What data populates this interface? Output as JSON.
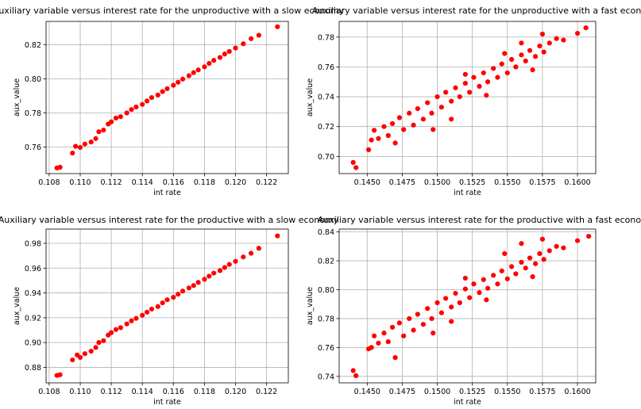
{
  "figure": {
    "marker_color": "#ff0000",
    "grid_color": "#b0b0b0",
    "axes_color": "#000000"
  },
  "chart_data": [
    {
      "type": "scatter",
      "title": "Auxiliary variable versus interest rate for the unproductive with a slow economy",
      "xlabel": "int rate",
      "ylabel": "aux_value",
      "xlim": [
        0.1078,
        0.1234
      ],
      "ylim": [
        0.7445,
        0.8336
      ],
      "xticks": [
        "0.108",
        "0.110",
        "0.112",
        "0.114",
        "0.116",
        "0.118",
        "0.120",
        "0.122"
      ],
      "yticks": [
        "0.76",
        "0.78",
        "0.80",
        "0.82"
      ],
      "grid": true,
      "series": [
        {
          "color": "#ff0000",
          "points": [
            [
              0.1085,
              0.7478
            ],
            [
              0.1087,
              0.7482
            ],
            [
              0.1095,
              0.7565
            ],
            [
              0.1097,
              0.7605
            ],
            [
              0.11,
              0.7598
            ],
            [
              0.1103,
              0.7618
            ],
            [
              0.1107,
              0.763
            ],
            [
              0.111,
              0.765
            ],
            [
              0.1112,
              0.769
            ],
            [
              0.1115,
              0.77
            ],
            [
              0.1118,
              0.7735
            ],
            [
              0.112,
              0.7748
            ],
            [
              0.1123,
              0.777
            ],
            [
              0.1126,
              0.7778
            ],
            [
              0.113,
              0.78
            ],
            [
              0.1133,
              0.782
            ],
            [
              0.1136,
              0.7835
            ],
            [
              0.114,
              0.785
            ],
            [
              0.1143,
              0.787
            ],
            [
              0.1146,
              0.789
            ],
            [
              0.115,
              0.7905
            ],
            [
              0.1153,
              0.7925
            ],
            [
              0.1156,
              0.7942
            ],
            [
              0.116,
              0.7962
            ],
            [
              0.1163,
              0.798
            ],
            [
              0.1166,
              0.7998
            ],
            [
              0.117,
              0.8018
            ],
            [
              0.1173,
              0.8036
            ],
            [
              0.1176,
              0.8052
            ],
            [
              0.118,
              0.807
            ],
            [
              0.1183,
              0.809
            ],
            [
              0.1186,
              0.8108
            ],
            [
              0.119,
              0.8125
            ],
            [
              0.1193,
              0.8145
            ],
            [
              0.1196,
              0.816
            ],
            [
              0.12,
              0.818
            ],
            [
              0.1205,
              0.8205
            ],
            [
              0.121,
              0.8235
            ],
            [
              0.1215,
              0.8255
            ],
            [
              0.1227,
              0.8305
            ]
          ]
        }
      ]
    },
    {
      "type": "scatter",
      "title": "Auxiliary variable versus interest rate for the unproductive with a fast economy",
      "xlabel": "int rate",
      "ylabel": "aux_value",
      "xlim": [
        0.143,
        0.1613
      ],
      "ylim": [
        0.6885,
        0.7905
      ],
      "xticks": [
        "0.1450",
        "0.1475",
        "0.1500",
        "0.1525",
        "0.1550",
        "0.1575",
        "0.1600"
      ],
      "yticks": [
        "0.70",
        "0.72",
        "0.74",
        "0.76",
        "0.78"
      ],
      "grid": true,
      "series": [
        {
          "color": "#ff0000",
          "points": [
            [
              0.144,
              0.696
            ],
            [
              0.1442,
              0.6925
            ],
            [
              0.1451,
              0.7045
            ],
            [
              0.1453,
              0.711
            ],
            [
              0.1455,
              0.7175
            ],
            [
              0.1458,
              0.712
            ],
            [
              0.1462,
              0.72
            ],
            [
              0.1465,
              0.714
            ],
            [
              0.1468,
              0.722
            ],
            [
              0.147,
              0.709
            ],
            [
              0.1473,
              0.726
            ],
            [
              0.1476,
              0.718
            ],
            [
              0.148,
              0.729
            ],
            [
              0.1483,
              0.721
            ],
            [
              0.1486,
              0.732
            ],
            [
              0.149,
              0.725
            ],
            [
              0.1493,
              0.736
            ],
            [
              0.1496,
              0.729
            ],
            [
              0.15,
              0.74
            ],
            [
              0.1503,
              0.733
            ],
            [
              0.1506,
              0.743
            ],
            [
              0.151,
              0.737
            ],
            [
              0.1513,
              0.746
            ],
            [
              0.1516,
              0.74
            ],
            [
              0.152,
              0.749
            ],
            [
              0.1523,
              0.743
            ],
            [
              0.1526,
              0.753
            ],
            [
              0.153,
              0.747
            ],
            [
              0.1533,
              0.756
            ],
            [
              0.1536,
              0.75
            ],
            [
              0.154,
              0.759
            ],
            [
              0.1543,
              0.753
            ],
            [
              0.1546,
              0.762
            ],
            [
              0.155,
              0.756
            ],
            [
              0.1553,
              0.765
            ],
            [
              0.1556,
              0.76
            ],
            [
              0.156,
              0.768
            ],
            [
              0.1563,
              0.764
            ],
            [
              0.1566,
              0.771
            ],
            [
              0.157,
              0.767
            ],
            [
              0.1573,
              0.774
            ],
            [
              0.1576,
              0.77
            ],
            [
              0.158,
              0.776
            ],
            [
              0.1585,
              0.779
            ],
            [
              0.159,
              0.778
            ],
            [
              0.16,
              0.7825
            ],
            [
              0.1606,
              0.7862
            ],
            [
              0.151,
              0.725
            ],
            [
              0.152,
              0.755
            ],
            [
              0.1548,
              0.769
            ],
            [
              0.1535,
              0.741
            ],
            [
              0.1497,
              0.718
            ],
            [
              0.1568,
              0.758
            ],
            [
              0.156,
              0.776
            ],
            [
              0.1575,
              0.782
            ]
          ]
        }
      ]
    },
    {
      "type": "scatter",
      "title": "Auxiliary variable versus interest rate for the productive with a slow economy",
      "xlabel": "int rate",
      "ylabel": "aux_value",
      "xlim": [
        0.1078,
        0.1234
      ],
      "ylim": [
        0.8675,
        0.9915
      ],
      "xticks": [
        "0.108",
        "0.110",
        "0.112",
        "0.114",
        "0.116",
        "0.118",
        "0.120",
        "0.122"
      ],
      "yticks": [
        "0.88",
        "0.90",
        "0.92",
        "0.94",
        "0.96",
        "0.98"
      ],
      "grid": true,
      "series": [
        {
          "color": "#ff0000",
          "points": [
            [
              0.1085,
              0.8735
            ],
            [
              0.1087,
              0.874
            ],
            [
              0.1095,
              0.886
            ],
            [
              0.1098,
              0.89
            ],
            [
              0.11,
              0.888
            ],
            [
              0.1103,
              0.891
            ],
            [
              0.1107,
              0.893
            ],
            [
              0.111,
              0.896
            ],
            [
              0.1112,
              0.9
            ],
            [
              0.1115,
              0.9015
            ],
            [
              0.1118,
              0.906
            ],
            [
              0.112,
              0.908
            ],
            [
              0.1123,
              0.9105
            ],
            [
              0.1126,
              0.912
            ],
            [
              0.113,
              0.915
            ],
            [
              0.1133,
              0.9175
            ],
            [
              0.1136,
              0.9195
            ],
            [
              0.114,
              0.922
            ],
            [
              0.1143,
              0.9245
            ],
            [
              0.1146,
              0.927
            ],
            [
              0.115,
              0.929
            ],
            [
              0.1153,
              0.932
            ],
            [
              0.1156,
              0.9345
            ],
            [
              0.116,
              0.9365
            ],
            [
              0.1163,
              0.939
            ],
            [
              0.1166,
              0.9415
            ],
            [
              0.117,
              0.944
            ],
            [
              0.1173,
              0.946
            ],
            [
              0.1176,
              0.9485
            ],
            [
              0.118,
              0.951
            ],
            [
              0.1183,
              0.9535
            ],
            [
              0.1186,
              0.956
            ],
            [
              0.119,
              0.958
            ],
            [
              0.1193,
              0.9605
            ],
            [
              0.1196,
              0.963
            ],
            [
              0.12,
              0.9655
            ],
            [
              0.1205,
              0.969
            ],
            [
              0.121,
              0.972
            ],
            [
              0.1215,
              0.976
            ],
            [
              0.1227,
              0.986
            ]
          ]
        }
      ]
    },
    {
      "type": "scatter",
      "title": "Auxiliary variable versus interest rate for the productive with a fast economy",
      "xlabel": "int rate",
      "ylabel": "aux_value",
      "xlim": [
        0.143,
        0.1613
      ],
      "ylim": [
        0.7355,
        0.842
      ],
      "xticks": [
        "0.1450",
        "0.1475",
        "0.1500",
        "0.1525",
        "0.1550",
        "0.1575",
        "0.1600"
      ],
      "yticks": [
        "0.74",
        "0.76",
        "0.78",
        "0.80",
        "0.82",
        "0.84"
      ],
      "grid": true,
      "series": [
        {
          "color": "#ff0000",
          "points": [
            [
              0.144,
              0.744
            ],
            [
              0.1442,
              0.7405
            ],
            [
              0.1451,
              0.759
            ],
            [
              0.1453,
              0.76
            ],
            [
              0.1455,
              0.768
            ],
            [
              0.1458,
              0.763
            ],
            [
              0.1462,
              0.77
            ],
            [
              0.1465,
              0.764
            ],
            [
              0.1468,
              0.774
            ],
            [
              0.147,
              0.753
            ],
            [
              0.1473,
              0.777
            ],
            [
              0.1476,
              0.768
            ],
            [
              0.148,
              0.78
            ],
            [
              0.1483,
              0.772
            ],
            [
              0.1486,
              0.783
            ],
            [
              0.149,
              0.776
            ],
            [
              0.1493,
              0.787
            ],
            [
              0.1496,
              0.78
            ],
            [
              0.15,
              0.791
            ],
            [
              0.1503,
              0.784
            ],
            [
              0.1506,
              0.794
            ],
            [
              0.151,
              0.788
            ],
            [
              0.1513,
              0.7975
            ],
            [
              0.1516,
              0.791
            ],
            [
              0.152,
              0.8005
            ],
            [
              0.1523,
              0.7945
            ],
            [
              0.1526,
              0.804
            ],
            [
              0.153,
              0.798
            ],
            [
              0.1533,
              0.807
            ],
            [
              0.1536,
              0.801
            ],
            [
              0.154,
              0.81
            ],
            [
              0.1543,
              0.804
            ],
            [
              0.1546,
              0.813
            ],
            [
              0.155,
              0.8075
            ],
            [
              0.1553,
              0.816
            ],
            [
              0.1556,
              0.811
            ],
            [
              0.156,
              0.819
            ],
            [
              0.1563,
              0.815
            ],
            [
              0.1566,
              0.822
            ],
            [
              0.157,
              0.818
            ],
            [
              0.1573,
              0.825
            ],
            [
              0.1576,
              0.821
            ],
            [
              0.158,
              0.827
            ],
            [
              0.1585,
              0.83
            ],
            [
              0.159,
              0.829
            ],
            [
              0.16,
              0.834
            ],
            [
              0.1608,
              0.837
            ],
            [
              0.151,
              0.778
            ],
            [
              0.152,
              0.808
            ],
            [
              0.1548,
              0.825
            ],
            [
              0.1535,
              0.793
            ],
            [
              0.1497,
              0.77
            ],
            [
              0.1568,
              0.809
            ],
            [
              0.156,
              0.832
            ],
            [
              0.1575,
              0.835
            ]
          ]
        }
      ]
    }
  ]
}
